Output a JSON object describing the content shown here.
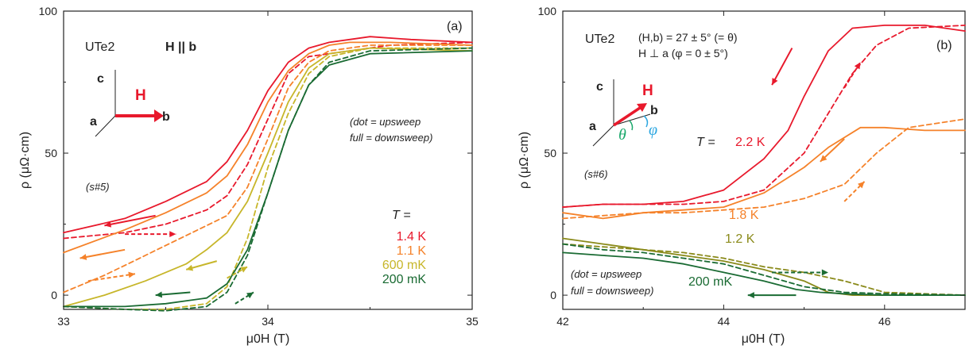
{
  "chart_data": [
    {
      "type": "line",
      "panel_label": "(a)",
      "xlabel": "μ0H (T)",
      "ylabel": "ρ (μΩ·cm)",
      "xlim": [
        33,
        35
      ],
      "ylim": [
        -5,
        100
      ],
      "xticks": [
        "33",
        "34",
        "35"
      ],
      "yticks": [
        "0",
        "50",
        "100"
      ],
      "annotations": {
        "compound": "UTe2",
        "field_dir": "H || b",
        "sample": "(s#5)",
        "note_line1": "(dot = upsweep",
        "note_line2": "full = downsweep)",
        "temp_header": "T =",
        "axis_c": "c",
        "axis_a": "a",
        "axis_b": "b",
        "axis_H": "H"
      },
      "series": [
        {
          "name": "1.4 K",
          "color": "#e8192c",
          "sweep": "down",
          "x": [
            33,
            33.3,
            33.5,
            33.7,
            33.8,
            33.9,
            34.0,
            34.1,
            34.2,
            34.3,
            34.4,
            34.5,
            34.7,
            35
          ],
          "y": [
            22,
            27,
            33,
            40,
            47,
            58,
            72,
            82,
            87,
            89,
            90,
            91,
            90,
            89
          ]
        },
        {
          "name": "1.4 K",
          "color": "#e8192c",
          "sweep": "up",
          "x": [
            33,
            33.3,
            33.5,
            33.7,
            33.8,
            33.9,
            34.0,
            34.1,
            34.2,
            34.3,
            34.4,
            34.6,
            35
          ],
          "y": [
            20,
            22,
            25,
            30,
            35,
            46,
            62,
            78,
            84,
            85,
            86,
            88,
            89
          ]
        },
        {
          "name": "1.1 K",
          "color": "#f5822a",
          "sweep": "down",
          "x": [
            33,
            33.3,
            33.5,
            33.7,
            33.8,
            33.9,
            34.0,
            34.1,
            34.2,
            34.3,
            34.4,
            34.6,
            35
          ],
          "y": [
            15,
            23,
            29,
            36,
            42,
            53,
            68,
            79,
            85,
            88,
            89,
            89,
            88
          ]
        },
        {
          "name": "1.1 K",
          "color": "#f5822a",
          "sweep": "up",
          "x": [
            33,
            33.2,
            33.4,
            33.6,
            33.8,
            33.9,
            34.0,
            34.1,
            34.2,
            34.3,
            34.5,
            35
          ],
          "y": [
            1,
            7,
            14,
            21,
            28,
            38,
            55,
            73,
            82,
            86,
            88,
            88
          ]
        },
        {
          "name": "600 mK",
          "color": "#c7b62a",
          "sweep": "down",
          "x": [
            33,
            33.2,
            33.4,
            33.6,
            33.7,
            33.8,
            33.9,
            34.0,
            34.1,
            34.2,
            34.3,
            34.5,
            35
          ],
          "y": [
            -4,
            0,
            5,
            11,
            16,
            22,
            33,
            50,
            68,
            80,
            85,
            87,
            86
          ]
        },
        {
          "name": "600 mK",
          "color": "#c7b62a",
          "sweep": "up",
          "x": [
            33,
            33.3,
            33.5,
            33.7,
            33.8,
            33.9,
            34.0,
            34.1,
            34.2,
            34.3,
            34.5,
            35
          ],
          "y": [
            -4,
            -5,
            -5,
            -3,
            3,
            20,
            45,
            64,
            78,
            84,
            87,
            87
          ]
        },
        {
          "name": "200 mK",
          "color": "#1a6b33",
          "sweep": "down",
          "x": [
            33,
            33.3,
            33.5,
            33.7,
            33.8,
            33.9,
            34.0,
            34.1,
            34.2,
            34.3,
            34.5,
            35
          ],
          "y": [
            -4,
            -4,
            -3,
            -1,
            4,
            16,
            36,
            58,
            74,
            81,
            85,
            86
          ]
        },
        {
          "name": "200 mK",
          "color": "#1a6b33",
          "sweep": "up",
          "x": [
            33,
            33.3,
            33.5,
            33.7,
            33.8,
            33.9,
            34.0,
            34.1,
            34.2,
            34.3,
            34.5,
            35
          ],
          "y": [
            -4,
            -5,
            -5.5,
            -4,
            1,
            14,
            36,
            58,
            74,
            82,
            86,
            87
          ]
        }
      ]
    },
    {
      "type": "line",
      "panel_label": "(b)",
      "xlabel": "μ0H (T)",
      "ylabel": "ρ (μΩ·cm)",
      "xlim": [
        42,
        47
      ],
      "ylim": [
        -5,
        100
      ],
      "xticks": [
        "42",
        "44",
        "46"
      ],
      "yticks": [
        "0",
        "50",
        "100"
      ],
      "annotations": {
        "compound": "UTe2",
        "angle_line1": "(H,b) = 27 ± 5° (= θ)",
        "angle_line2": "H ⊥ a      (φ = 0 ± 5°)",
        "sample": "(s#6)",
        "note_line1": "(dot = upsweep",
        "note_line2": "full = downsweep)",
        "temp_prefix": "T = ",
        "label_2_2K": "2.2 K",
        "label_1_8K": "1.8 K",
        "label_1_2K": "1.2 K",
        "label_200mK": "200 mK",
        "axis_c": "c",
        "axis_a": "a",
        "axis_b": "b",
        "axis_H": "H",
        "theta": "θ",
        "phi": "φ"
      },
      "series": [
        {
          "name": "2.2 K",
          "color": "#e8192c",
          "sweep": "down",
          "x": [
            42,
            42.5,
            43,
            43.5,
            44,
            44.5,
            44.8,
            45.0,
            45.3,
            45.6,
            46,
            46.5,
            47
          ],
          "y": [
            31,
            32,
            32,
            33,
            37,
            48,
            58,
            70,
            86,
            94,
            95,
            95,
            93
          ]
        },
        {
          "name": "2.2 K",
          "color": "#e8192c",
          "sweep": "up",
          "x": [
            42,
            42.5,
            43,
            43.5,
            44,
            44.5,
            45.0,
            45.3,
            45.6,
            45.9,
            46.3,
            47
          ],
          "y": [
            31,
            32,
            32,
            32,
            33,
            37,
            50,
            64,
            78,
            88,
            94,
            95
          ]
        },
        {
          "name": "1.8 K",
          "color": "#f5822a",
          "sweep": "down",
          "x": [
            42,
            42.5,
            43,
            43.5,
            44,
            44.5,
            45.0,
            45.3,
            45.7,
            46,
            46.5,
            47
          ],
          "y": [
            29,
            27,
            29,
            30,
            31,
            36,
            45,
            52,
            59,
            59,
            58,
            58
          ]
        },
        {
          "name": "1.8 K",
          "color": "#f5822a",
          "sweep": "up",
          "x": [
            42,
            42.5,
            43,
            43.5,
            44,
            44.5,
            45.0,
            45.5,
            45.9,
            46.3,
            47
          ],
          "y": [
            27,
            28,
            29,
            29,
            30,
            31,
            34,
            39,
            50,
            59,
            62
          ]
        },
        {
          "name": "1.2 K",
          "color": "#8a8a1a",
          "sweep": "down",
          "x": [
            42,
            42.5,
            43,
            43.5,
            44,
            44.5,
            45.0,
            45.3,
            45.6,
            46,
            47
          ],
          "y": [
            20,
            18,
            16,
            14,
            12,
            9,
            5,
            1,
            0,
            0,
            0
          ]
        },
        {
          "name": "1.2 K",
          "color": "#8a8a1a",
          "sweep": "up",
          "x": [
            42,
            42.5,
            43,
            43.5,
            44,
            44.5,
            45.0,
            45.5,
            46,
            47
          ],
          "y": [
            18,
            17,
            16,
            15,
            13,
            10,
            8,
            5,
            1,
            0
          ]
        },
        {
          "name": "200 mK",
          "color": "#1a6b33",
          "sweep": "down",
          "x": [
            42,
            42.5,
            43,
            43.5,
            44,
            44.5,
            44.9,
            45.2,
            45.5,
            46,
            47
          ],
          "y": [
            15,
            14,
            13,
            11,
            8,
            5,
            2,
            1,
            0.5,
            0,
            0
          ]
        },
        {
          "name": "200 mK",
          "color": "#1a6b33",
          "sweep": "up",
          "x": [
            42,
            42.5,
            43,
            43.5,
            44,
            44.5,
            45.0,
            45.5,
            46,
            47
          ],
          "y": [
            18,
            16,
            15,
            13,
            11,
            7,
            3,
            1,
            0.5,
            0
          ]
        }
      ]
    }
  ]
}
